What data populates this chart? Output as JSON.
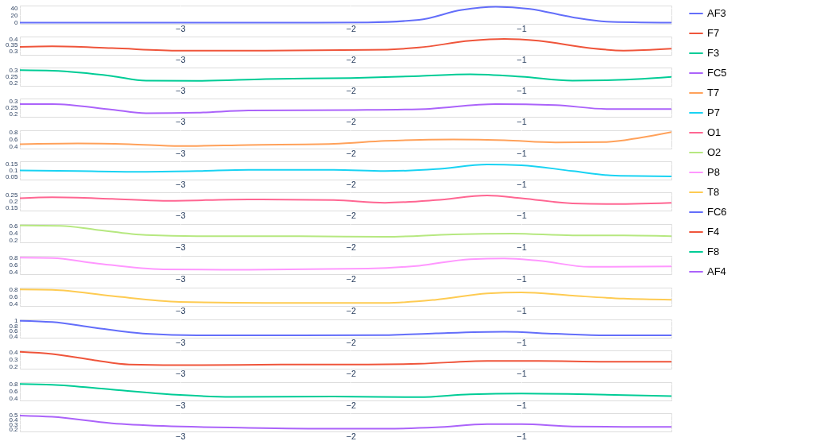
{
  "chart_data": [
    {
      "type": "line",
      "legend": "right",
      "grid": true,
      "xlim": [
        -3.94,
        -0.12
      ],
      "xticks": [
        -3,
        -2,
        -1
      ],
      "ylim": [
        -3,
        47
      ],
      "yticks": [
        0,
        20,
        40
      ],
      "series": [
        {
          "name": "AF3",
          "color": "#636efa",
          "x": [
            -3.94,
            -3,
            -2.2,
            -1.9,
            -1.6,
            -1.35,
            -1.15,
            -0.95,
            -0.7,
            -0.5,
            -0.3,
            -0.12
          ],
          "values": [
            0,
            0,
            0,
            1,
            8,
            35,
            44,
            38,
            15,
            3,
            1,
            0
          ]
        }
      ]
    },
    {
      "type": "line",
      "legend": "right",
      "grid": true,
      "xlim": [
        -3.94,
        -0.12
      ],
      "xticks": [
        -3,
        -2,
        -1
      ],
      "ylim": [
        0.27,
        0.42
      ],
      "yticks": [
        0.3,
        0.35,
        0.4
      ],
      "series": [
        {
          "name": "F7",
          "color": "#EF553B",
          "x": [
            -3.94,
            -3.75,
            -3.4,
            -3.0,
            -2.5,
            -1.9,
            -1.6,
            -1.3,
            -1.1,
            -0.9,
            -0.6,
            -0.4,
            -0.12
          ],
          "values": [
            0.335,
            0.34,
            0.325,
            0.305,
            0.305,
            0.31,
            0.33,
            0.385,
            0.4,
            0.385,
            0.325,
            0.305,
            0.32
          ]
        }
      ]
    },
    {
      "type": "line",
      "legend": "right",
      "grid": true,
      "xlim": [
        -3.94,
        -0.12
      ],
      "xticks": [
        -3,
        -2,
        -1
      ],
      "ylim": [
        0.18,
        0.32
      ],
      "yticks": [
        0.2,
        0.25,
        0.3
      ],
      "series": [
        {
          "name": "F3",
          "color": "#00cc96",
          "x": [
            -3.94,
            -3.75,
            -3.4,
            -3.2,
            -2.9,
            -2.5,
            -2.0,
            -1.6,
            -1.3,
            -1.0,
            -0.7,
            -0.5,
            -0.12
          ],
          "values": [
            0.3,
            0.295,
            0.255,
            0.22,
            0.218,
            0.232,
            0.24,
            0.255,
            0.268,
            0.25,
            0.22,
            0.222,
            0.248
          ]
        }
      ]
    },
    {
      "type": "line",
      "legend": "right",
      "grid": true,
      "xlim": [
        -3.94,
        -0.12
      ],
      "xticks": [
        -3,
        -2,
        -1
      ],
      "ylim": [
        0.18,
        0.32
      ],
      "yticks": [
        0.2,
        0.25,
        0.3
      ],
      "series": [
        {
          "name": "FC5",
          "color": "#ab63fa",
          "x": [
            -3.94,
            -3.75,
            -3.4,
            -3.2,
            -2.9,
            -2.6,
            -2.0,
            -1.6,
            -1.15,
            -0.8,
            -0.5,
            -0.12
          ],
          "values": [
            0.278,
            0.278,
            0.235,
            0.208,
            0.212,
            0.228,
            0.232,
            0.238,
            0.278,
            0.27,
            0.24,
            0.24
          ]
        }
      ]
    },
    {
      "type": "line",
      "legend": "right",
      "grid": true,
      "xlim": [
        -3.94,
        -0.12
      ],
      "xticks": [
        -3,
        -2,
        -1
      ],
      "ylim": [
        0.35,
        0.85
      ],
      "yticks": [
        0.4,
        0.6,
        0.8
      ],
      "series": [
        {
          "name": "T7",
          "color": "#FFA15A",
          "x": [
            -3.94,
            -3.6,
            -3.3,
            -3.0,
            -2.6,
            -2.1,
            -1.8,
            -1.4,
            -1.1,
            -0.8,
            -0.5,
            -0.3,
            -0.12
          ],
          "values": [
            0.47,
            0.49,
            0.47,
            0.42,
            0.45,
            0.48,
            0.56,
            0.6,
            0.58,
            0.52,
            0.53,
            0.65,
            0.8
          ]
        }
      ]
    },
    {
      "type": "line",
      "legend": "right",
      "grid": true,
      "xlim": [
        -3.94,
        -0.12
      ],
      "xticks": [
        -3,
        -2,
        -1
      ],
      "ylim": [
        0.03,
        0.17
      ],
      "yticks": [
        0.05,
        0.1,
        0.15
      ],
      "series": [
        {
          "name": "P7",
          "color": "#19d3f3",
          "x": [
            -3.94,
            -3.6,
            -3.2,
            -2.9,
            -2.6,
            -2.1,
            -1.8,
            -1.5,
            -1.2,
            -1.0,
            -0.7,
            -0.45,
            -0.12
          ],
          "values": [
            0.1,
            0.095,
            0.09,
            0.095,
            0.105,
            0.105,
            0.095,
            0.11,
            0.145,
            0.14,
            0.095,
            0.06,
            0.055
          ]
        }
      ]
    },
    {
      "type": "line",
      "legend": "right",
      "grid": true,
      "xlim": [
        -3.94,
        -0.12
      ],
      "xticks": [
        -3,
        -2,
        -1
      ],
      "ylim": [
        0.13,
        0.27
      ],
      "yticks": [
        0.15,
        0.2,
        0.25
      ],
      "series": [
        {
          "name": "O1",
          "color": "#FF6692",
          "x": [
            -3.94,
            -3.75,
            -3.4,
            -3.1,
            -2.6,
            -2.1,
            -1.8,
            -1.5,
            -1.2,
            -1.0,
            -0.7,
            -0.5,
            -0.12
          ],
          "values": [
            0.225,
            0.232,
            0.22,
            0.205,
            0.215,
            0.21,
            0.19,
            0.21,
            0.245,
            0.225,
            0.185,
            0.18,
            0.19
          ]
        }
      ]
    },
    {
      "type": "line",
      "legend": "right",
      "grid": true,
      "xlim": [
        -3.94,
        -0.12
      ],
      "xticks": [
        -3,
        -2,
        -1
      ],
      "ylim": [
        0.15,
        0.65
      ],
      "yticks": [
        0.2,
        0.4,
        0.6
      ],
      "series": [
        {
          "name": "O2",
          "color": "#B6E880",
          "x": [
            -3.94,
            -3.7,
            -3.5,
            -3.2,
            -2.9,
            -2.3,
            -1.8,
            -1.4,
            -1.05,
            -0.7,
            -0.4,
            -0.12
          ],
          "values": [
            0.61,
            0.6,
            0.5,
            0.35,
            0.32,
            0.32,
            0.3,
            0.37,
            0.39,
            0.34,
            0.34,
            0.32
          ]
        }
      ]
    },
    {
      "type": "line",
      "legend": "right",
      "grid": true,
      "xlim": [
        -3.94,
        -0.12
      ],
      "xticks": [
        -3,
        -2,
        -1
      ],
      "ylim": [
        0.35,
        0.85
      ],
      "yticks": [
        0.4,
        0.6,
        0.8
      ],
      "series": [
        {
          "name": "P8",
          "color": "#FF97FF",
          "x": [
            -3.94,
            -3.75,
            -3.5,
            -3.1,
            -2.6,
            -1.9,
            -1.6,
            -1.3,
            -1.1,
            -0.9,
            -0.6,
            -0.12
          ],
          "values": [
            0.8,
            0.79,
            0.65,
            0.48,
            0.47,
            0.5,
            0.58,
            0.76,
            0.78,
            0.72,
            0.55,
            0.56
          ]
        }
      ]
    },
    {
      "type": "line",
      "legend": "right",
      "grid": true,
      "xlim": [
        -3.94,
        -0.12
      ],
      "xticks": [
        -3,
        -2,
        -1
      ],
      "ylim": [
        0.35,
        0.85
      ],
      "yticks": [
        0.4,
        0.6,
        0.8
      ],
      "series": [
        {
          "name": "T8",
          "color": "#FECB52",
          "x": [
            -3.94,
            -3.75,
            -3.4,
            -3.0,
            -2.5,
            -1.8,
            -1.5,
            -1.2,
            -1.0,
            -0.7,
            -0.4,
            -0.12
          ],
          "values": [
            0.8,
            0.79,
            0.62,
            0.46,
            0.43,
            0.43,
            0.52,
            0.69,
            0.72,
            0.63,
            0.55,
            0.52
          ]
        }
      ]
    },
    {
      "type": "line",
      "legend": "right",
      "grid": true,
      "xlim": [
        -3.94,
        -0.12
      ],
      "xticks": [
        -3,
        -2,
        -1
      ],
      "ylim": [
        0.35,
        1.05
      ],
      "yticks": [
        0.4,
        0.6,
        0.8,
        1
      ],
      "series": [
        {
          "name": "FC6",
          "color": "#636efa",
          "x": [
            -3.94,
            -3.75,
            -3.5,
            -3.2,
            -2.9,
            -2.3,
            -1.8,
            -1.5,
            -1.1,
            -0.8,
            -0.5,
            -0.12
          ],
          "values": [
            1.0,
            0.95,
            0.73,
            0.5,
            0.44,
            0.44,
            0.45,
            0.52,
            0.58,
            0.5,
            0.44,
            0.44
          ]
        }
      ]
    },
    {
      "type": "line",
      "legend": "right",
      "grid": true,
      "xlim": [
        -3.94,
        -0.12
      ],
      "xticks": [
        -3,
        -2,
        -1
      ],
      "ylim": [
        0.17,
        0.43
      ],
      "yticks": [
        0.2,
        0.3,
        0.4
      ],
      "series": [
        {
          "name": "F4",
          "color": "#EF553B",
          "x": [
            -3.94,
            -3.75,
            -3.5,
            -3.3,
            -2.9,
            -2.4,
            -1.9,
            -1.6,
            -1.2,
            -0.9,
            -0.5,
            -0.12
          ],
          "values": [
            0.41,
            0.38,
            0.29,
            0.23,
            0.22,
            0.23,
            0.23,
            0.24,
            0.28,
            0.28,
            0.27,
            0.27
          ]
        }
      ]
    },
    {
      "type": "line",
      "legend": "right",
      "grid": true,
      "xlim": [
        -3.94,
        -0.12
      ],
      "xticks": [
        -3,
        -2,
        -1
      ],
      "ylim": [
        0.35,
        0.85
      ],
      "yticks": [
        0.4,
        0.6,
        0.8
      ],
      "series": [
        {
          "name": "F8",
          "color": "#00cc96",
          "x": [
            -3.94,
            -3.75,
            -3.4,
            -3.0,
            -2.7,
            -2.1,
            -1.6,
            -1.3,
            -1.0,
            -0.6,
            -0.12
          ],
          "values": [
            0.8,
            0.78,
            0.65,
            0.5,
            0.45,
            0.46,
            0.44,
            0.52,
            0.54,
            0.52,
            0.47
          ]
        }
      ]
    },
    {
      "type": "line",
      "legend": "right",
      "grid": true,
      "xlim": [
        -3.94,
        -0.12
      ],
      "xticks": [
        -3,
        -2,
        -1
      ],
      "ylim": [
        0.15,
        0.55
      ],
      "yticks": [
        0.2,
        0.3,
        0.4,
        0.5
      ],
      "series": [
        {
          "name": "AF4",
          "color": "#ab63fa",
          "x": [
            -3.94,
            -3.75,
            -3.4,
            -3.1,
            -2.6,
            -2.1,
            -1.8,
            -1.5,
            -1.2,
            -1.0,
            -0.7,
            -0.4,
            -0.12
          ],
          "values": [
            0.5,
            0.47,
            0.33,
            0.27,
            0.23,
            0.21,
            0.21,
            0.24,
            0.31,
            0.31,
            0.26,
            0.25,
            0.25
          ]
        }
      ]
    }
  ]
}
